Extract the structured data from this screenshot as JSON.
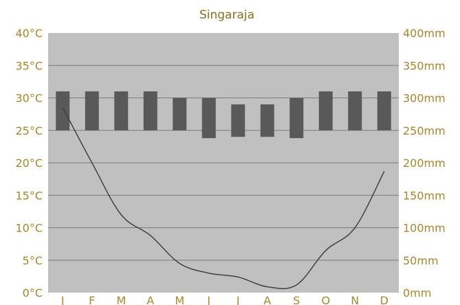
{
  "chart_data": {
    "type": "bar",
    "title": "Singaraja",
    "categories": [
      "J",
      "F",
      "M",
      "A",
      "M",
      "J",
      "J",
      "A",
      "S",
      "O",
      "N",
      "D"
    ],
    "temperature_ranges": [
      {
        "min": 25,
        "max": 31
      },
      {
        "min": 25,
        "max": 31
      },
      {
        "min": 25,
        "max": 31
      },
      {
        "min": 25,
        "max": 31
      },
      {
        "min": 25,
        "max": 30
      },
      {
        "min": 23.8,
        "max": 30
      },
      {
        "min": 24,
        "max": 29
      },
      {
        "min": 24,
        "max": 29
      },
      {
        "min": 23.8,
        "max": 30
      },
      {
        "min": 25,
        "max": 31
      },
      {
        "min": 25,
        "max": 31
      },
      {
        "min": 25,
        "max": 31
      }
    ],
    "precipitation": [
      285,
      200,
      120,
      88,
      45,
      30,
      24,
      9,
      12,
      65,
      100,
      187
    ],
    "y_left": {
      "min": 0,
      "max": 40,
      "step": 5,
      "unit": "°C"
    },
    "y_right": {
      "min": 0,
      "max": 400,
      "step": 50,
      "unit": "mm"
    },
    "grid": true,
    "colors": {
      "plot_bg": "#c0c0c0",
      "bar": "#595959",
      "line": "#404040",
      "grid": "#7a7a7a",
      "label": "#a8862a",
      "title": "#8a6d1e"
    }
  }
}
